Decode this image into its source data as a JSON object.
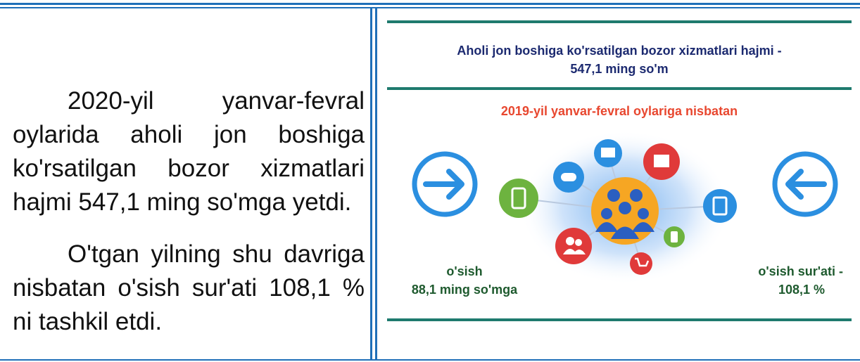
{
  "left_text": {
    "paragraphs": [
      "2020-yil yanvar-fevral oylarida aholi jon boshiga ko'rsatilgan bozor xizmatlari hajmi 547,1 ming so'mga yetdi.",
      "O'tgan yilning shu davriga nisbatan o'sish sur'ati 108,1 % ni tashkil etdi."
    ]
  },
  "infographic": {
    "title_lines": [
      "Aholi jon boshiga ko'rsatilgan bozor xizmatlari hajmi -",
      "547,1 ming so'm"
    ],
    "subtitle": "2019-yil yanvar-fevral oylariga nisbatan",
    "left_label": [
      "o'sish",
      "88,1 ming so'mga"
    ],
    "right_label": [
      "o'sish sur'ati -",
      "108,1 %"
    ]
  }
}
